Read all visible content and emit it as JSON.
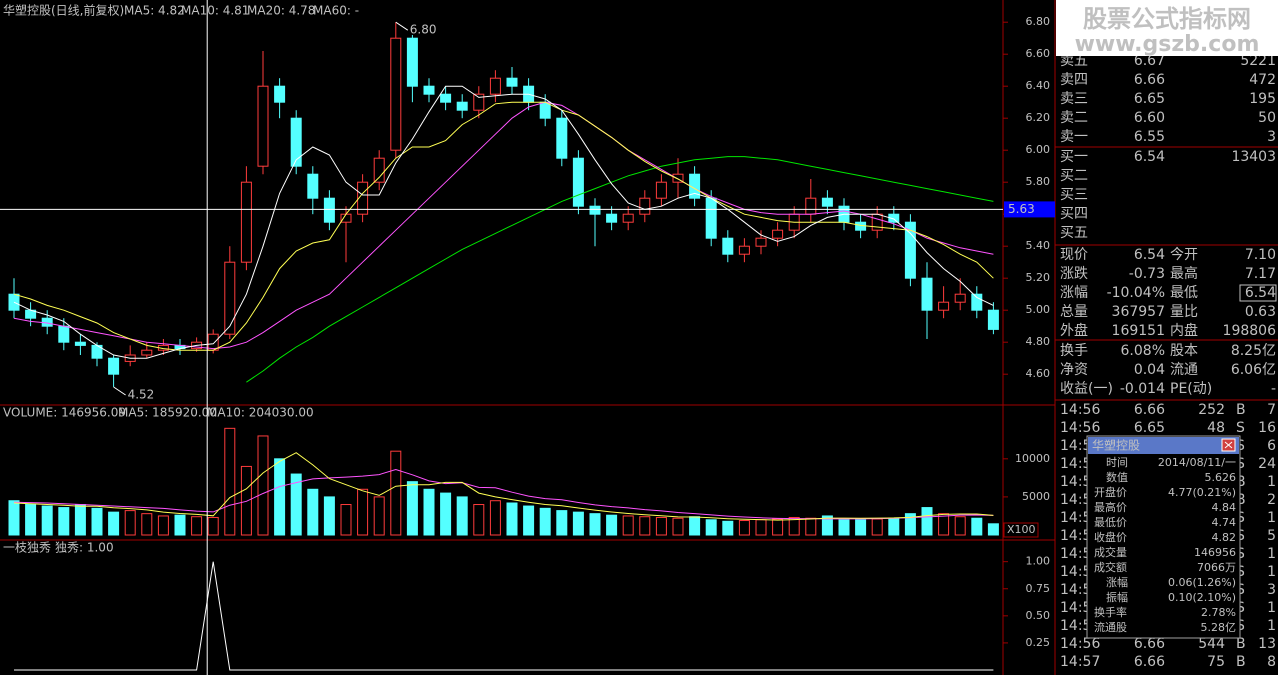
{
  "header": {
    "title": "华塑控股(日线,前复权)",
    "ma5": "MA5: 4.82",
    "ma10": "MA10: 4.81",
    "ma20": "MA20: 4.78",
    "ma60": "MA60: -"
  },
  "price": {
    "ylim": [
      4.42,
      6.92
    ],
    "yticks": [
      {
        "value": 6.8,
        "label": "6.80"
      },
      {
        "value": 6.6,
        "label": "6.60"
      },
      {
        "value": 6.4,
        "label": "6.40"
      },
      {
        "value": 6.2,
        "label": "6.20"
      },
      {
        "value": 6.0,
        "label": "6.00"
      },
      {
        "value": 5.8,
        "label": "5.80"
      },
      {
        "value": 5.6,
        "label": "5.60"
      },
      {
        "value": 5.4,
        "label": "5.40"
      },
      {
        "value": 5.2,
        "label": "5.20"
      },
      {
        "value": 5.0,
        "label": "5.00"
      },
      {
        "value": 4.8,
        "label": "4.80"
      },
      {
        "value": 4.6,
        "label": "4.60"
      }
    ],
    "open": [
      5.1,
      5.0,
      4.95,
      4.9,
      4.8,
      4.78,
      4.7,
      4.68,
      4.72,
      4.75,
      4.78,
      4.76,
      4.75,
      4.85,
      5.3,
      5.9,
      6.4,
      6.2,
      5.85,
      5.7,
      5.55,
      5.6,
      5.8,
      6.0,
      6.7,
      6.4,
      6.35,
      6.3,
      6.25,
      6.35,
      6.45,
      6.4,
      6.3,
      6.2,
      5.95,
      5.65,
      5.6,
      5.55,
      5.6,
      5.7,
      5.8,
      5.85,
      5.7,
      5.45,
      5.35,
      5.4,
      5.45,
      5.5,
      5.6,
      5.7,
      5.65,
      5.55,
      5.5,
      5.6,
      5.55,
      5.2,
      5.0,
      5.05,
      5.1,
      5.0
    ],
    "high": [
      5.2,
      5.05,
      5.0,
      4.95,
      4.85,
      4.8,
      4.72,
      4.78,
      4.8,
      4.82,
      4.82,
      4.83,
      4.88,
      5.4,
      5.9,
      6.62,
      6.45,
      6.25,
      5.9,
      5.75,
      5.65,
      5.85,
      6.0,
      6.8,
      6.72,
      6.45,
      6.4,
      6.35,
      6.4,
      6.5,
      6.52,
      6.45,
      6.35,
      6.25,
      6.0,
      5.7,
      5.65,
      5.65,
      5.75,
      5.85,
      5.95,
      5.9,
      5.75,
      5.5,
      5.45,
      5.5,
      5.55,
      5.65,
      5.82,
      5.75,
      5.7,
      5.6,
      5.65,
      5.65,
      5.6,
      5.3,
      5.15,
      5.2,
      5.15,
      5.05
    ],
    "low": [
      4.95,
      4.9,
      4.85,
      4.75,
      4.72,
      4.65,
      4.52,
      4.65,
      4.7,
      4.72,
      4.72,
      4.74,
      4.73,
      4.82,
      5.25,
      5.85,
      6.2,
      5.85,
      5.6,
      5.5,
      5.3,
      5.55,
      5.75,
      5.95,
      6.3,
      6.3,
      6.25,
      6.2,
      6.2,
      6.3,
      6.35,
      6.25,
      6.15,
      5.9,
      5.6,
      5.4,
      5.5,
      5.5,
      5.55,
      5.65,
      5.7,
      5.65,
      5.4,
      5.3,
      5.3,
      5.35,
      5.4,
      5.45,
      5.55,
      5.6,
      5.5,
      5.45,
      5.45,
      5.5,
      5.15,
      4.82,
      4.95,
      5.0,
      4.95,
      4.85
    ],
    "close": [
      5.0,
      4.95,
      4.9,
      4.8,
      4.78,
      4.7,
      4.6,
      4.72,
      4.75,
      4.78,
      4.76,
      4.8,
      4.85,
      5.3,
      5.8,
      6.4,
      6.3,
      5.9,
      5.7,
      5.55,
      5.6,
      5.8,
      5.95,
      6.7,
      6.4,
      6.35,
      6.3,
      6.25,
      6.35,
      6.45,
      6.4,
      6.3,
      6.2,
      5.95,
      5.65,
      5.6,
      5.55,
      5.6,
      5.7,
      5.8,
      5.85,
      5.7,
      5.45,
      5.35,
      5.4,
      5.45,
      5.5,
      5.6,
      5.7,
      5.65,
      5.55,
      5.5,
      5.6,
      5.55,
      5.2,
      5.0,
      5.05,
      5.1,
      5.0,
      4.88
    ],
    "ma5": [
      5.05,
      5.0,
      4.97,
      4.93,
      4.85,
      4.78,
      4.72,
      4.7,
      4.7,
      4.73,
      4.76,
      4.78,
      4.79,
      4.9,
      5.1,
      5.4,
      5.73,
      5.94,
      6.02,
      5.97,
      5.8,
      5.72,
      5.72,
      5.92,
      6.07,
      6.24,
      6.4,
      6.4,
      6.33,
      6.34,
      6.35,
      6.35,
      6.32,
      6.25,
      6.1,
      5.94,
      5.79,
      5.67,
      5.63,
      5.65,
      5.7,
      5.73,
      5.7,
      5.63,
      5.55,
      5.47,
      5.43,
      5.46,
      5.53,
      5.58,
      5.6,
      5.6,
      5.6,
      5.57,
      5.48,
      5.36,
      5.26,
      5.18,
      5.08,
      5.03
    ],
    "ma10": [
      5.1,
      5.07,
      5.03,
      5.0,
      4.96,
      4.92,
      4.86,
      4.82,
      4.78,
      4.76,
      4.75,
      4.75,
      4.75,
      4.8,
      4.92,
      5.08,
      5.26,
      5.37,
      5.42,
      5.44,
      5.6,
      5.73,
      5.83,
      5.95,
      6.02,
      6.02,
      6.06,
      6.16,
      6.22,
      6.29,
      6.3,
      6.3,
      6.3,
      6.25,
      6.22,
      6.15,
      6.08,
      6.0,
      5.93,
      5.87,
      5.82,
      5.76,
      5.7,
      5.65,
      5.6,
      5.58,
      5.56,
      5.55,
      5.55,
      5.55,
      5.55,
      5.53,
      5.52,
      5.51,
      5.5,
      5.46,
      5.41,
      5.35,
      5.3,
      5.2
    ],
    "ma20": [
      4.95,
      4.93,
      4.92,
      4.9,
      4.88,
      4.86,
      4.84,
      4.82,
      4.8,
      4.79,
      4.78,
      4.77,
      4.76,
      4.77,
      4.8,
      4.86,
      4.93,
      5.0,
      5.05,
      5.1,
      5.2,
      5.3,
      5.4,
      5.5,
      5.6,
      5.7,
      5.8,
      5.9,
      6.0,
      6.1,
      6.2,
      6.27,
      6.3,
      6.28,
      6.22,
      6.15,
      6.08,
      6.0,
      5.94,
      5.88,
      5.82,
      5.76,
      5.71,
      5.67,
      5.63,
      5.61,
      5.6,
      5.6,
      5.6,
      5.61,
      5.62,
      5.6,
      5.57,
      5.54,
      5.5,
      5.45,
      5.42,
      5.39,
      5.37,
      5.35
    ],
    "ma60": [
      null,
      null,
      null,
      null,
      null,
      null,
      null,
      null,
      null,
      null,
      null,
      null,
      null,
      null,
      4.55,
      4.62,
      4.7,
      4.77,
      4.83,
      4.9,
      4.96,
      5.02,
      5.08,
      5.14,
      5.2,
      5.26,
      5.32,
      5.38,
      5.43,
      5.48,
      5.53,
      5.58,
      5.63,
      5.68,
      5.72,
      5.76,
      5.8,
      5.84,
      5.87,
      5.9,
      5.92,
      5.94,
      5.95,
      5.96,
      5.96,
      5.95,
      5.94,
      5.92,
      5.9,
      5.88,
      5.86,
      5.84,
      5.82,
      5.8,
      5.78,
      5.76,
      5.74,
      5.72,
      5.7,
      5.68
    ],
    "high_label": "6.80",
    "low_label": "4.52",
    "cursor": {
      "value": 5.63,
      "label": "5.63"
    }
  },
  "volume": {
    "label": "VOLUME: 146956.09",
    "ma5_label": "MA5: 185920.00",
    "ma10_label": "MA10: 204030.00",
    "ylim": [
      0,
      14700
    ],
    "yticks": [
      10000,
      5000
    ],
    "unit": "X100",
    "values": [
      4500,
      4000,
      3800,
      3600,
      4000,
      3500,
      3000,
      3200,
      2800,
      2500,
      2600,
      2400,
      2300,
      14000,
      9000,
      13000,
      10000,
      8000,
      6000,
      5000,
      4000,
      6000,
      5000,
      11000,
      7000,
      6000,
      5500,
      5000,
      4000,
      4500,
      4200,
      3800,
      3500,
      3200,
      3000,
      2800,
      2600,
      2500,
      2400,
      2300,
      2200,
      2400,
      2000,
      1800,
      1900,
      2000,
      2100,
      2300,
      2200,
      2500,
      2000,
      2000,
      2100,
      2200,
      2800,
      3600,
      2800,
      2400,
      2200,
      1470
    ],
    "ma5": [
      4200,
      4100,
      4000,
      3900,
      3780,
      3780,
      3580,
      3460,
      3300,
      3000,
      2820,
      2700,
      2520,
      4920,
      6060,
      8140,
      9660,
      10800,
      9200,
      7400,
      6600,
      5800,
      5200,
      6400,
      6600,
      6600,
      6900,
      6900,
      5500,
      5000,
      4640,
      4300,
      4000,
      3840,
      3540,
      3260,
      3020,
      2820,
      2660,
      2520,
      2380,
      2360,
      2260,
      2140,
      2060,
      2020,
      1960,
      2020,
      2100,
      2220,
      2220,
      2200,
      2220,
      2240,
      2320,
      2540,
      2700,
      2760,
      2760,
      2570
    ],
    "ma10": [
      4300,
      4250,
      4200,
      4100,
      4000,
      3900,
      3800,
      3700,
      3600,
      3500,
      3300,
      3140,
      3030,
      3910,
      4420,
      5450,
      6360,
      6870,
      7360,
      7500,
      7600,
      7730,
      7930,
      8600,
      7900,
      7100,
      6750,
      6850,
      6250,
      6200,
      5620,
      5100,
      4780,
      4620,
      4270,
      3950,
      3720,
      3560,
      3330,
      3160,
      2960,
      2810,
      2640,
      2480,
      2360,
      2260,
      2190,
      2150,
      2150,
      2120,
      2120,
      2120,
      2150,
      2200,
      2280,
      2380,
      2480,
      2610,
      2620,
      2580
    ]
  },
  "indicator": {
    "name": "一枝独秀",
    "label": "独秀: 1.00",
    "ylim": [
      0,
      1.2
    ],
    "yticks": [
      {
        "value": 1,
        "label": "1.00"
      },
      {
        "value": 0.75,
        "label": "0.75"
      },
      {
        "value": 0.5,
        "label": "0.50"
      },
      {
        "value": 0.25,
        "label": "0.25"
      }
    ],
    "values": [
      0,
      0,
      0,
      0,
      0,
      0,
      0,
      0,
      0,
      0,
      0,
      0,
      1,
      0,
      0,
      0,
      0,
      0,
      0,
      0,
      0,
      0,
      0,
      0,
      0,
      0,
      0,
      0,
      0,
      0,
      0,
      0,
      0,
      0,
      0,
      0,
      0,
      0,
      0,
      0,
      0,
      0,
      0,
      0,
      0,
      0,
      0,
      0,
      0,
      0,
      0,
      0,
      0,
      0,
      0,
      0,
      0,
      0,
      0,
      0
    ]
  },
  "order_book": {
    "sell": [
      [
        "卖五",
        "6.67",
        "5221"
      ],
      [
        "卖四",
        "6.66",
        "472"
      ],
      [
        "卖三",
        "6.65",
        "195"
      ],
      [
        "卖二",
        "6.60",
        "50"
      ],
      [
        "卖一",
        "6.55",
        "3"
      ]
    ],
    "buy": [
      [
        "买一",
        "6.54",
        "13403"
      ],
      [
        "买二"
      ],
      [
        "买三"
      ],
      [
        "买四"
      ],
      [
        "买五"
      ]
    ]
  },
  "quote": [
    [
      "现价",
      "6.54",
      "今开",
      "7.10"
    ],
    [
      "涨跌",
      "-0.73",
      "最高",
      "7.17"
    ],
    [
      "涨幅",
      "-10.04%",
      "最低",
      "6.54"
    ],
    [
      "总量",
      "367957",
      "量比",
      "0.63"
    ],
    [
      "外盘",
      "169151",
      "内盘",
      "198806"
    ]
  ],
  "stats": [
    [
      "换手",
      "6.08%",
      "股本",
      "8.25亿"
    ],
    [
      "净资",
      "0.04",
      "流通",
      "6.06亿"
    ],
    [
      "收益(一)",
      "-0.014",
      "PE(动)",
      "-"
    ]
  ],
  "trades": [
    [
      "14:56",
      "6.66",
      "252",
      "B",
      "7"
    ],
    [
      "14:56",
      "6.65",
      "48",
      "S",
      "16"
    ],
    [
      "14:56",
      "S",
      "6"
    ],
    [
      "14:56",
      "S",
      "24"
    ],
    [
      "14:56",
      "B",
      "1"
    ],
    [
      "14:56",
      "B",
      "2"
    ],
    [
      "14:56",
      "S",
      "1"
    ],
    [
      "14:56",
      "S",
      "5"
    ],
    [
      "14:56",
      "S",
      "1"
    ],
    [
      "14:56",
      "S",
      "1"
    ],
    [
      "14:56",
      "S",
      "3"
    ],
    [
      "14:56",
      "S",
      "1"
    ],
    [
      "14:56",
      "S",
      "1"
    ],
    [
      "14:56",
      "6.66",
      "544",
      "B",
      "13"
    ],
    [
      "14:57",
      "6.66",
      "75",
      "B",
      "8"
    ]
  ],
  "popup": {
    "title": "华塑控股",
    "rows": [
      [
        "时间",
        "2014/08/11/一"
      ],
      [
        "数值",
        "5.626"
      ],
      [
        "开盘价",
        "4.77(0.21%)"
      ],
      [
        "最高价",
        "4.84"
      ],
      [
        "最低价",
        "4.74"
      ],
      [
        "收盘价",
        "4.82"
      ],
      [
        "成交量",
        "146956"
      ],
      [
        "成交额",
        "7066万"
      ],
      [
        "涨幅",
        "0.06(1.26%)"
      ],
      [
        "振幅",
        "0.10(2.10%)"
      ],
      [
        "换手率",
        "2.78%"
      ],
      [
        "流通股",
        "5.28亿"
      ]
    ]
  },
  "watermark": {
    "name": "股票公式指标网",
    "url": "www.gszb.com"
  }
}
